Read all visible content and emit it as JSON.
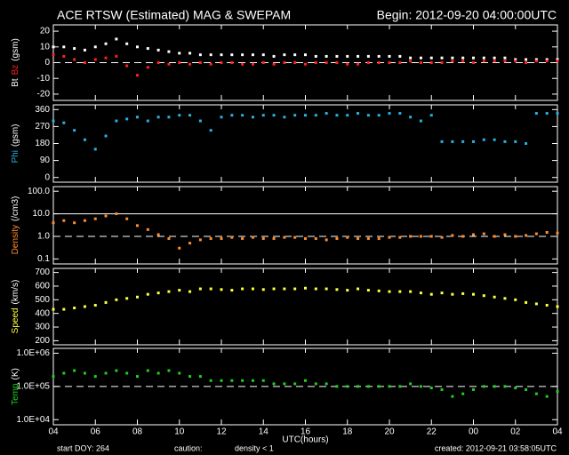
{
  "chart_data": [
    {
      "type": "scatter",
      "title": "ACE RTSW (Estimated) MAG & SWEPAM",
      "subtitle": "Begin: 2012-09-20 04:00:00UTC",
      "ylabel": [
        {
          "text": "Bt",
          "color": "#ffffff"
        },
        {
          "text": "Bz",
          "color": "#ff2020"
        },
        {
          "text": "(gsm)",
          "color": "#ffffff"
        }
      ],
      "xlim": [
        0,
        24
      ],
      "ylim": [
        -24,
        24
      ],
      "yticks": [
        -20,
        -10,
        0,
        10,
        20
      ],
      "reflines": [
        {
          "value": 0,
          "dashed": true
        }
      ],
      "x": [
        0,
        0.5,
        1,
        1.5,
        2,
        2.5,
        3,
        3.5,
        4,
        4.5,
        5,
        5.5,
        6,
        6.5,
        7,
        7.5,
        8,
        8.5,
        9,
        9.5,
        10,
        10.5,
        11,
        11.5,
        12,
        12.5,
        13,
        13.5,
        14,
        14.5,
        15,
        15.5,
        16,
        16.5,
        17,
        17.5,
        18,
        18.5,
        19,
        19.5,
        20,
        20.5,
        21,
        21.5,
        22,
        22.5,
        23,
        23.5,
        24
      ],
      "series": [
        {
          "name": "Bt",
          "color": "#ffffff",
          "values": [
            10,
            10,
            9,
            8,
            10,
            12,
            15,
            12,
            10,
            9,
            8,
            7,
            6,
            6,
            5,
            5,
            5,
            5,
            5,
            5,
            5,
            4,
            5,
            5,
            5,
            4,
            4,
            4,
            4,
            4,
            4,
            4,
            4,
            4,
            3,
            3,
            3,
            3,
            3,
            3,
            3,
            3,
            3,
            3,
            2,
            2,
            2,
            2,
            2
          ]
        },
        {
          "name": "Bz",
          "color": "#ff2020",
          "values": [
            5,
            4,
            2,
            0,
            2,
            3,
            4,
            -2,
            -8,
            -3,
            0,
            -1,
            0,
            -1,
            0,
            -1,
            0,
            0,
            -1,
            -1,
            0,
            -1,
            0,
            0,
            -1,
            0,
            0,
            0,
            -1,
            -1,
            0,
            0,
            0,
            0,
            1,
            0,
            0,
            0,
            1,
            1,
            0,
            1,
            1,
            1,
            1,
            0,
            1,
            1,
            1
          ]
        }
      ]
    },
    {
      "type": "scatter",
      "ylabel": [
        {
          "text": "Phi",
          "color": "#2ab0e0"
        },
        {
          "text": "(gsm)",
          "color": "#ffffff"
        }
      ],
      "xlim": [
        0,
        24
      ],
      "ylim": [
        -25,
        385
      ],
      "yticks": [
        0,
        90,
        180,
        270,
        360
      ],
      "x": [
        0,
        0.5,
        1,
        1.5,
        2,
        2.5,
        3,
        3.5,
        4,
        4.5,
        5,
        5.5,
        6,
        6.5,
        7,
        7.5,
        8,
        8.5,
        9,
        9.5,
        10,
        10.5,
        11,
        11.5,
        12,
        12.5,
        13,
        13.5,
        14,
        14.5,
        15,
        15.5,
        16,
        16.5,
        17,
        17.5,
        18,
        18.5,
        19,
        19.5,
        20,
        20.5,
        21,
        21.5,
        22,
        22.5,
        23,
        23.5,
        24
      ],
      "series": [
        {
          "name": "Phi",
          "color": "#2ab0e0",
          "values": [
            300,
            290,
            250,
            200,
            150,
            220,
            300,
            310,
            320,
            300,
            320,
            320,
            330,
            330,
            300,
            250,
            320,
            330,
            330,
            320,
            330,
            330,
            320,
            330,
            330,
            330,
            340,
            330,
            330,
            340,
            330,
            330,
            340,
            340,
            320,
            300,
            330,
            190,
            190,
            190,
            190,
            200,
            200,
            190,
            190,
            180,
            340,
            340,
            340
          ]
        }
      ]
    },
    {
      "type": "scatter",
      "ylabel": [
        {
          "text": "Density",
          "color": "#ff8c2a"
        },
        {
          "text": "(/cm3)",
          "color": "#ffffff"
        }
      ],
      "xlim": [
        0,
        24
      ],
      "ylim": [
        0.06,
        160
      ],
      "log": true,
      "yticks": [
        0.1,
        {
          "value": 1,
          "label": "1.0"
        },
        {
          "value": 10,
          "label": "10.0"
        },
        {
          "value": 100,
          "label": "100.0"
        }
      ],
      "reflines": [
        {
          "value": 1,
          "dashed": true
        },
        {
          "value": 10,
          "dashed": false
        }
      ],
      "x": [
        0,
        0.5,
        1,
        1.5,
        2,
        2.5,
        3,
        3.5,
        4,
        4.5,
        5,
        5.5,
        6,
        6.5,
        7,
        7.5,
        8,
        8.5,
        9,
        9.5,
        10,
        10.5,
        11,
        11.5,
        12,
        12.5,
        13,
        13.5,
        14,
        14.5,
        15,
        15.5,
        16,
        16.5,
        17,
        17.5,
        18,
        18.5,
        19,
        19.5,
        20,
        20.5,
        21,
        21.5,
        22,
        22.5,
        23,
        23.5,
        24
      ],
      "series": [
        {
          "name": "Density",
          "color": "#ff8c2a",
          "values": [
            4,
            5,
            4,
            5,
            6,
            8,
            10,
            6,
            3,
            2,
            1.2,
            0.8,
            0.3,
            0.5,
            0.7,
            0.8,
            0.8,
            0.9,
            0.8,
            0.9,
            0.8,
            0.8,
            0.9,
            0.9,
            0.8,
            0.8,
            0.7,
            0.8,
            0.9,
            0.8,
            0.8,
            0.8,
            0.9,
            0.9,
            1,
            1,
            1,
            0.9,
            1.1,
            1,
            1.2,
            1.3,
            1,
            1.2,
            1,
            1.1,
            1.3,
            1.5,
            1.4
          ]
        }
      ]
    },
    {
      "type": "scatter",
      "ylabel": [
        {
          "text": "Speed",
          "color": "#ffff40"
        },
        {
          "text": "(km/s)",
          "color": "#ffffff"
        }
      ],
      "xlim": [
        0,
        24
      ],
      "ylim": [
        170,
        730
      ],
      "yticks": [
        200,
        300,
        400,
        500,
        600,
        700
      ],
      "x": [
        0,
        0.5,
        1,
        1.5,
        2,
        2.5,
        3,
        3.5,
        4,
        4.5,
        5,
        5.5,
        6,
        6.5,
        7,
        7.5,
        8,
        8.5,
        9,
        9.5,
        10,
        10.5,
        11,
        11.5,
        12,
        12.5,
        13,
        13.5,
        14,
        14.5,
        15,
        15.5,
        16,
        16.5,
        17,
        17.5,
        18,
        18.5,
        19,
        19.5,
        20,
        20.5,
        21,
        21.5,
        22,
        22.5,
        23,
        23.5,
        24
      ],
      "series": [
        {
          "name": "Speed",
          "color": "#ffff40",
          "values": [
            430,
            430,
            440,
            450,
            460,
            480,
            500,
            510,
            520,
            540,
            550,
            560,
            570,
            560,
            580,
            580,
            575,
            570,
            580,
            580,
            575,
            580,
            580,
            580,
            585,
            580,
            580,
            575,
            570,
            580,
            570,
            565,
            560,
            560,
            560,
            550,
            540,
            550,
            540,
            545,
            540,
            530,
            520,
            510,
            500,
            480,
            470,
            460,
            450
          ]
        }
      ]
    },
    {
      "type": "scatter",
      "ylabel": [
        {
          "text": "Temp",
          "color": "#20d020"
        },
        {
          "text": "(K)",
          "color": "#ffffff"
        }
      ],
      "xlim": [
        0,
        24
      ],
      "ylim": [
        7000,
        1400000
      ],
      "log": true,
      "yticks": [
        {
          "value": 10000,
          "label": "1.0E+04"
        },
        {
          "value": 100000,
          "label": "1.0E+05"
        },
        {
          "value": 1000000,
          "label": "1.0E+06"
        }
      ],
      "reflines": [
        {
          "value": 100000,
          "dashed": true
        }
      ],
      "xlabel": "UTC(hours)",
      "xticks": [
        {
          "value": 0,
          "label": "04"
        },
        {
          "value": 2,
          "label": "06"
        },
        {
          "value": 4,
          "label": "08"
        },
        {
          "value": 6,
          "label": "10"
        },
        {
          "value": 8,
          "label": "12"
        },
        {
          "value": 10,
          "label": "14"
        },
        {
          "value": 12,
          "label": "16"
        },
        {
          "value": 14,
          "label": "18"
        },
        {
          "value": 16,
          "label": "20"
        },
        {
          "value": 18,
          "label": "22"
        },
        {
          "value": 20,
          "label": "00"
        },
        {
          "value": 22,
          "label": "02"
        },
        {
          "value": 24,
          "label": "04"
        }
      ],
      "footer": [
        "start DOY: 264",
        "caution:",
        "density < 1",
        "created: 2012-09-21 03:58:05UTC"
      ],
      "x": [
        0,
        0.5,
        1,
        1.5,
        2,
        2.5,
        3,
        3.5,
        4,
        4.5,
        5,
        5.5,
        6,
        6.5,
        7,
        7.5,
        8,
        8.5,
        9,
        9.5,
        10,
        10.5,
        11,
        11.5,
        12,
        12.5,
        13,
        13.5,
        14,
        14.5,
        15,
        15.5,
        16,
        16.5,
        17,
        17.5,
        18,
        18.5,
        19,
        19.5,
        20,
        20.5,
        21,
        21.5,
        22,
        22.5,
        23,
        23.5,
        24
      ],
      "series": [
        {
          "name": "Temp",
          "color": "#20d020",
          "values": [
            200000,
            250000,
            300000,
            250000,
            200000,
            250000,
            300000,
            250000,
            200000,
            300000,
            250000,
            300000,
            250000,
            200000,
            200000,
            150000,
            150000,
            150000,
            150000,
            150000,
            150000,
            120000,
            120000,
            120000,
            150000,
            120000,
            120000,
            100000,
            100000,
            100000,
            100000,
            100000,
            100000,
            100000,
            120000,
            100000,
            90000,
            80000,
            50000,
            60000,
            80000,
            100000,
            100000,
            100000,
            90000,
            80000,
            60000,
            50000,
            70000
          ]
        }
      ]
    }
  ]
}
